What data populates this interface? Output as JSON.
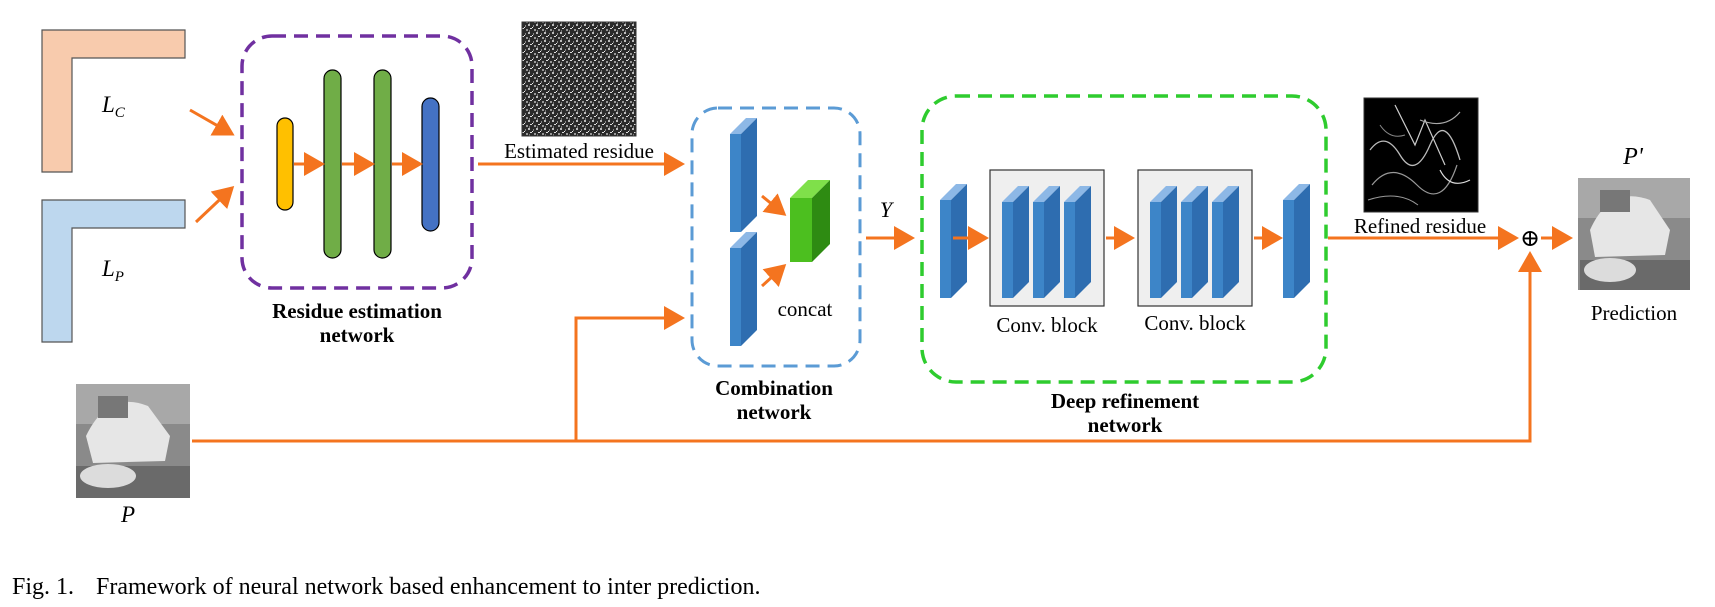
{
  "labels": {
    "lc_main": "L",
    "lc_sub": "C",
    "lp_main": "L",
    "lp_sub": "P",
    "residue_network_line1": "Residue estimation",
    "residue_network_line2": "network",
    "estimated_residue": "Estimated residue",
    "combination_line1": "Combination",
    "combination_line2": "network",
    "concat": "concat",
    "y": "Y",
    "conv_block_1": "Conv. block",
    "conv_block_2": "Conv. block",
    "refinement_line1": "Deep refinement",
    "refinement_line2": "network",
    "refined_residue": "Refined residue",
    "p_prime": "P'",
    "prediction": "Prediction",
    "p": "P",
    "plus": "⊕"
  },
  "caption": {
    "fig": "Fig. 1.",
    "text": "Framework of neural network based enhancement to inter prediction."
  },
  "colors": {
    "arrow": "#F4741F",
    "residue_box": "#7030A0",
    "combination_box": "#5B9BD5",
    "refinement_box": "#2ECC2E",
    "lc_fill": "#F8CBAD",
    "lp_fill": "#BDD7EE",
    "layer_yellow": "#FFC000",
    "layer_green": "#70AD47",
    "layer_blue": "#4472C4",
    "conv_blue": "#3D85C8",
    "concat_green": "#4CBF1F"
  }
}
